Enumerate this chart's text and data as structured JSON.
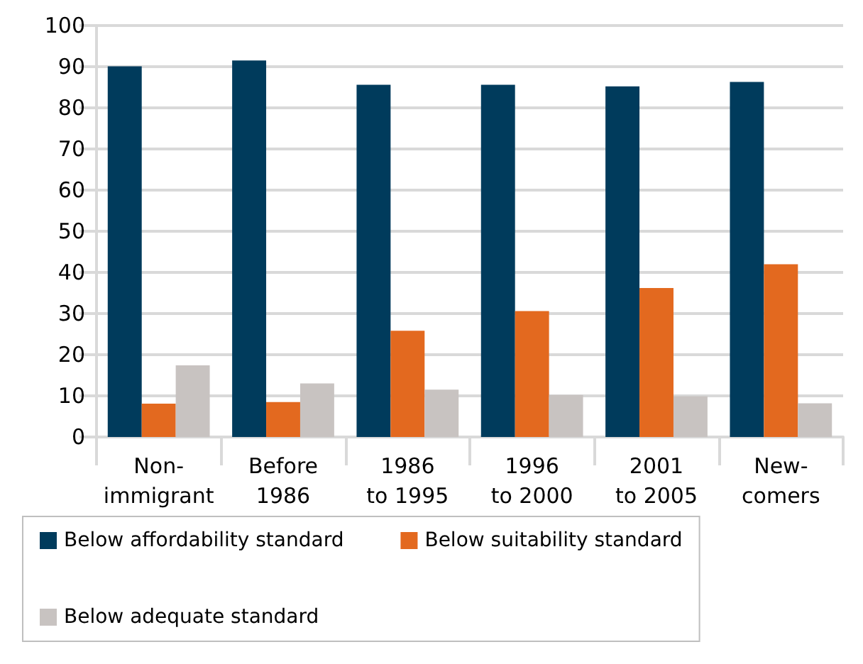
{
  "chart_data": {
    "type": "bar",
    "categories": [
      "Non-\nimmigrant",
      "Before\n1986",
      "1986\nto 1995",
      "1996\nto 2000",
      "2001\nto 2005",
      "New-\ncomers"
    ],
    "series": [
      {
        "name": "Below affordability standard",
        "color": "#003b5c",
        "values": [
          90.1,
          91.5,
          85.6,
          85.6,
          85.2,
          86.3
        ]
      },
      {
        "name": "Below suitability standard",
        "color": "#e3691f",
        "values": [
          8.1,
          8.5,
          25.8,
          30.6,
          36.2,
          42.0
        ]
      },
      {
        "name": "Below adequate standard",
        "color": "#c8c3c1",
        "values": [
          17.4,
          13.0,
          11.5,
          10.2,
          9.9,
          8.2
        ]
      }
    ],
    "ylim": [
      0,
      100
    ],
    "yticks": [
      0,
      10,
      20,
      30,
      40,
      50,
      60,
      70,
      80,
      90,
      100
    ],
    "grid": "y",
    "legend": "bottom"
  }
}
